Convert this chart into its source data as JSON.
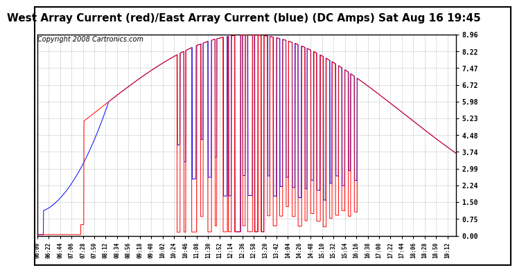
{
  "title": "West Array Current (red)/East Array Current (blue) (DC Amps) Sat Aug 16 19:45",
  "copyright": "Copyright 2008 Cartronics.com",
  "yticks": [
    0.0,
    0.75,
    1.5,
    2.24,
    2.99,
    3.74,
    4.48,
    5.23,
    5.98,
    6.72,
    7.47,
    8.22,
    8.96
  ],
  "ymin": 0.0,
  "ymax": 8.96,
  "color_red": "#ff0000",
  "color_blue": "#0000ff",
  "bg_color": "#ffffff",
  "grid_color": "#b0b0b0",
  "title_fontsize": 11,
  "copyright_fontsize": 7
}
